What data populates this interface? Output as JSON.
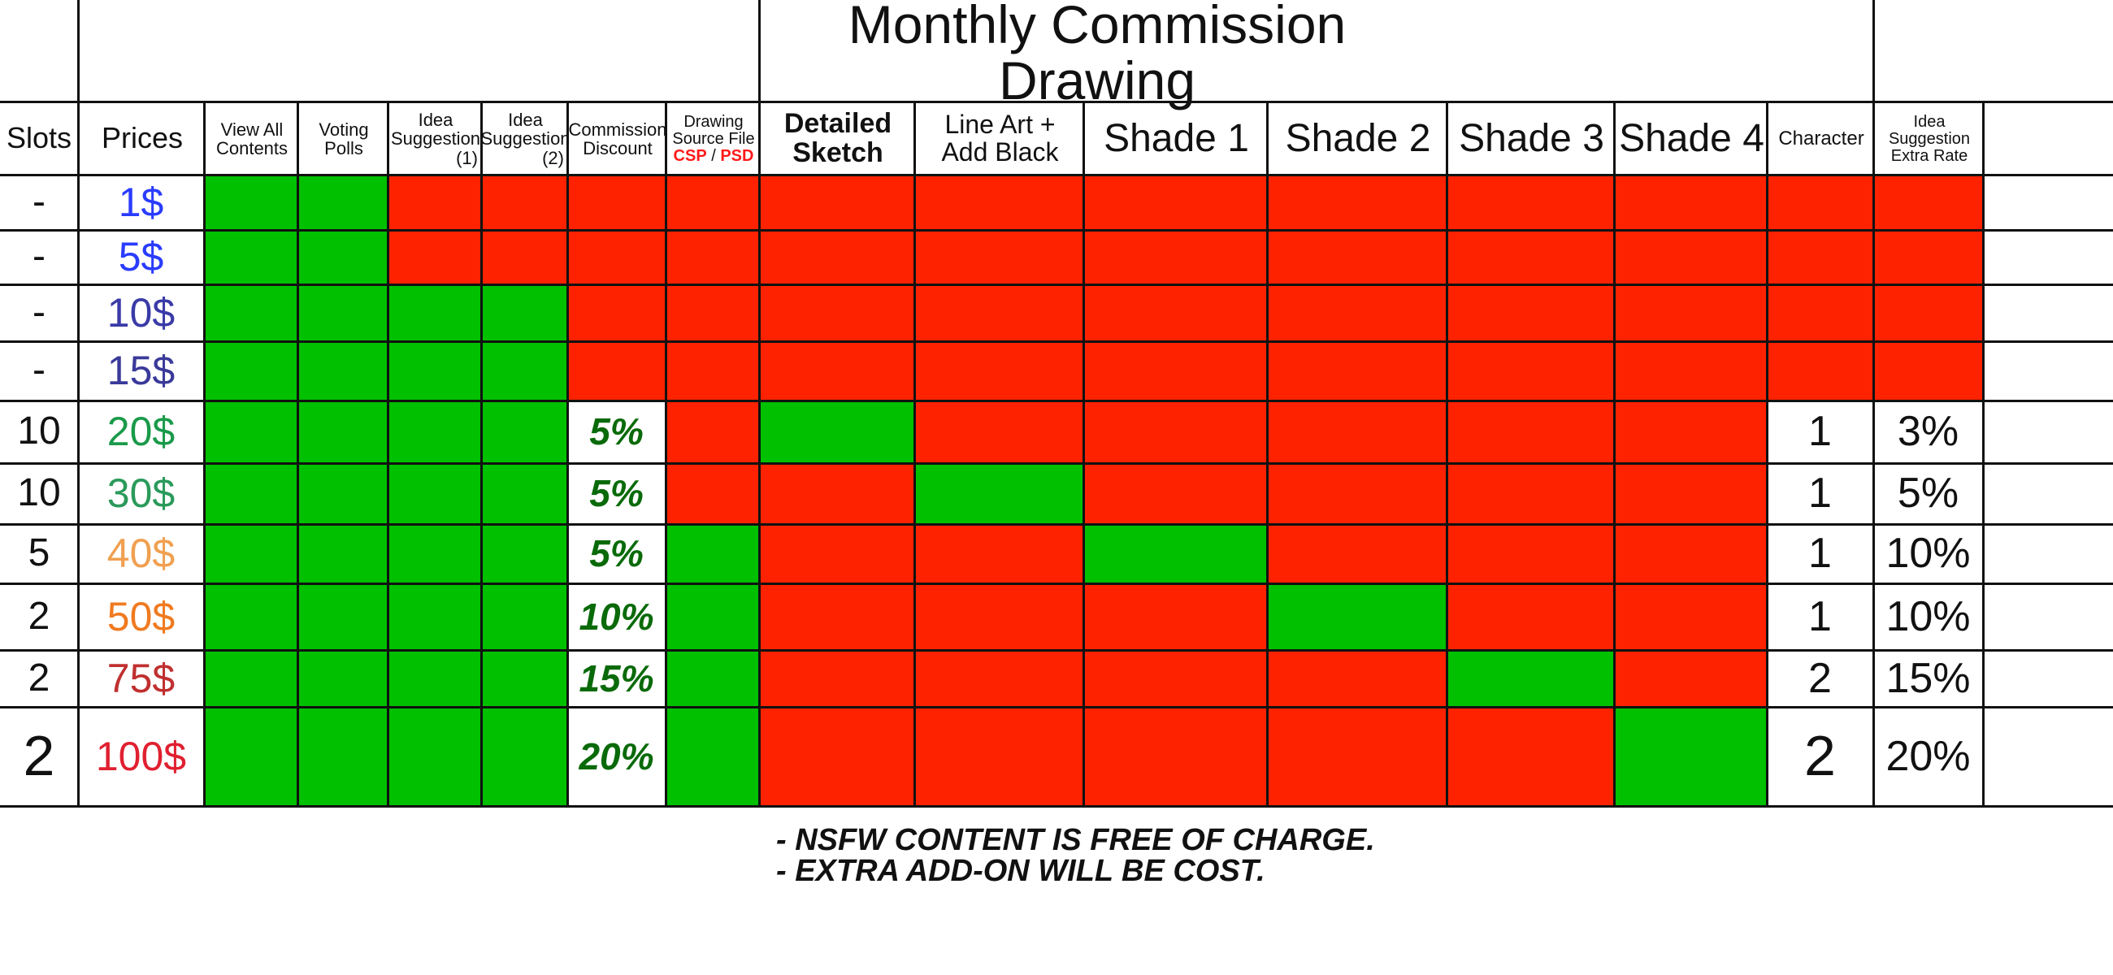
{
  "title": "Monthly Commission Drawing",
  "headers": {
    "slots": "Slots",
    "prices": "Prices",
    "view_all": "View All Contents",
    "voting": "Voting Polls",
    "idea1": "Idea Suggestion",
    "idea1_num": "(1)",
    "idea2": "Idea Suggestion",
    "idea2_num": "(2)",
    "discount": "Commission Discount",
    "source_file": "Drawing Source File",
    "csp": "CSP",
    "sep": "/",
    "psd": "PSD",
    "detailed_sketch": "Detailed Sketch",
    "line_art": "Line Art + Add Black",
    "shade1": "Shade 1",
    "shade2": "Shade 2",
    "shade3": "Shade 3",
    "shade4": "Shade 4",
    "character": "Character",
    "idea_extra": "Idea Suggestion Extra Rate"
  },
  "colors": {
    "included": "#00c000",
    "excluded": "#ff2200",
    "lines": "#111111"
  },
  "rows": [
    {
      "slots": "-",
      "price": "1$",
      "price_color": "#2a3cff",
      "discount": "",
      "character": "",
      "extra_rate": "",
      "features": [
        1,
        1,
        0,
        0,
        0,
        0,
        0,
        0,
        0,
        0,
        0,
        0,
        0,
        0
      ]
    },
    {
      "slots": "-",
      "price": "5$",
      "price_color": "#2a3cff",
      "discount": "",
      "character": "",
      "extra_rate": "",
      "features": [
        1,
        1,
        0,
        0,
        0,
        0,
        0,
        0,
        0,
        0,
        0,
        0,
        0,
        0
      ]
    },
    {
      "slots": "-",
      "price": "10$",
      "price_color": "#3a3aa8",
      "discount": "",
      "character": "",
      "extra_rate": "",
      "features": [
        1,
        1,
        1,
        1,
        0,
        0,
        0,
        0,
        0,
        0,
        0,
        0,
        0,
        0
      ]
    },
    {
      "slots": "-",
      "price": "15$",
      "price_color": "#3a3a9a",
      "discount": "",
      "character": "",
      "extra_rate": "",
      "features": [
        1,
        1,
        1,
        1,
        0,
        0,
        0,
        0,
        0,
        0,
        0,
        0,
        0,
        0
      ]
    },
    {
      "slots": "10",
      "price": "20$",
      "price_color": "#1a9a4a",
      "discount": "5%",
      "character": "1",
      "extra_rate": "3%",
      "features": [
        1,
        1,
        1,
        1,
        2,
        0,
        1,
        0,
        0,
        0,
        0,
        0,
        2,
        2
      ]
    },
    {
      "slots": "10",
      "price": "30$",
      "price_color": "#2a9a5a",
      "discount": "5%",
      "character": "1",
      "extra_rate": "5%",
      "features": [
        1,
        1,
        1,
        1,
        2,
        0,
        0,
        1,
        0,
        0,
        0,
        0,
        2,
        2
      ]
    },
    {
      "slots": "5",
      "price": "40$",
      "price_color": "#f0a050",
      "discount": "5%",
      "character": "1",
      "extra_rate": "10%",
      "features": [
        1,
        1,
        1,
        1,
        2,
        1,
        0,
        0,
        1,
        0,
        0,
        0,
        2,
        2
      ]
    },
    {
      "slots": "2",
      "price": "50$",
      "price_color": "#f07a20",
      "discount": "10%",
      "character": "1",
      "extra_rate": "10%",
      "features": [
        1,
        1,
        1,
        1,
        2,
        1,
        0,
        0,
        0,
        1,
        0,
        0,
        2,
        2
      ]
    },
    {
      "slots": "2",
      "price": "75$",
      "price_color": "#c03030",
      "discount": "15%",
      "character": "2",
      "extra_rate": "15%",
      "features": [
        1,
        1,
        1,
        1,
        2,
        1,
        0,
        0,
        0,
        0,
        1,
        0,
        2,
        2
      ]
    },
    {
      "slots": "2",
      "price": "100$",
      "price_color": "#e02030",
      "discount": "20%",
      "character": "2",
      "extra_rate": "20%",
      "features": [
        1,
        1,
        1,
        1,
        2,
        1,
        0,
        0,
        0,
        0,
        0,
        1,
        2,
        2
      ]
    }
  ],
  "notes": [
    "- NSFW CONTENT IS FREE OF CHARGE.",
    "- EXTRA ADD-ON WILL BE COST."
  ]
}
